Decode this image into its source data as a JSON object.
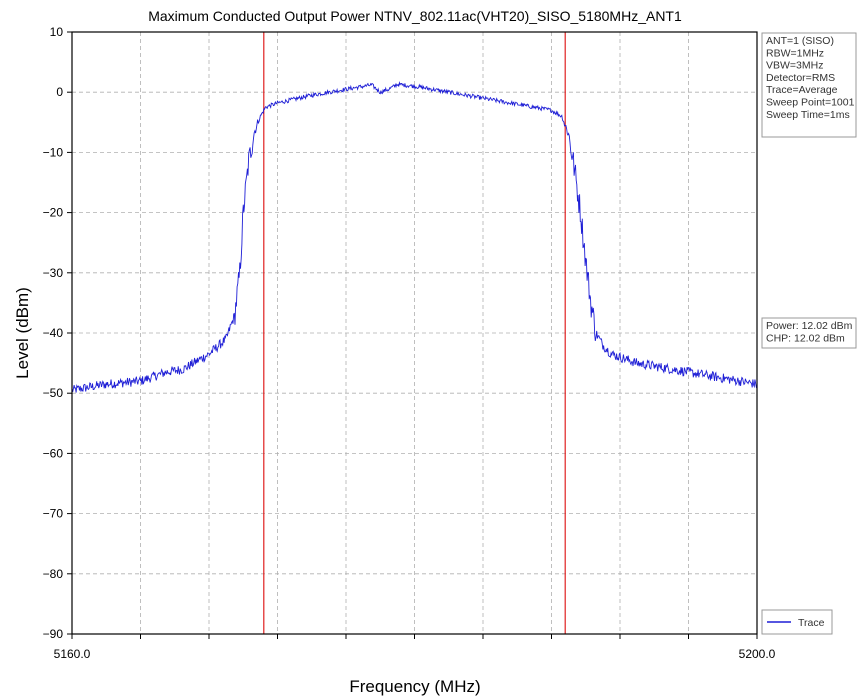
{
  "chart_data": {
    "type": "line",
    "title": "Maximum Conducted Output Power NTNV_802.11ac(VHT20)_SISO_5180MHz_ANT1",
    "xlabel": "Frequency (MHz)",
    "ylabel": "Level (dBm)",
    "xlim": [
      5160.0,
      5200.0
    ],
    "ylim": [
      -90,
      10
    ],
    "x_tick_labels": [
      "5160.0",
      "5200.0"
    ],
    "x_minor_ticks": [
      5164,
      5168,
      5172,
      5176,
      5180,
      5184,
      5188,
      5192,
      5196
    ],
    "y_ticks": [
      10,
      0,
      -10,
      -20,
      -30,
      -40,
      -50,
      -60,
      -70,
      -80,
      -90
    ],
    "y_tick_labels": [
      "10",
      "0",
      "−10",
      "−20",
      "−30",
      "−40",
      "−50",
      "−60",
      "−70",
      "−80",
      "−90"
    ],
    "grid": true,
    "legend": {
      "position": "bottom-right",
      "entries": [
        {
          "label": "Trace",
          "color": "#1f1fd6"
        }
      ]
    },
    "markers": {
      "x": [
        5171.2,
        5188.8
      ],
      "color": "#e02020"
    },
    "series": [
      {
        "name": "Trace",
        "color": "#1f1fd6",
        "x": [
          5160.0,
          5162.0,
          5164.0,
          5165.5,
          5166.5,
          5168.0,
          5169.0,
          5169.5,
          5169.8,
          5170.0,
          5170.3,
          5170.6,
          5171.0,
          5171.3,
          5172.0,
          5174.0,
          5176.0,
          5177.5,
          5178.0,
          5178.5,
          5179.0,
          5180.0,
          5182.0,
          5184.0,
          5186.0,
          5188.0,
          5188.6,
          5189.0,
          5189.3,
          5189.7,
          5190.0,
          5190.3,
          5190.6,
          5191.0,
          5191.5,
          5193.0,
          5195.0,
          5197.0,
          5199.0,
          5200.0
        ],
        "y": [
          -49.5,
          -48.5,
          -48.0,
          -46.5,
          -46.0,
          -43.5,
          -41.0,
          -37.0,
          -30.0,
          -20.0,
          -12.0,
          -7.0,
          -4.0,
          -2.5,
          -1.8,
          -0.5,
          0.5,
          1.2,
          0.0,
          0.5,
          1.3,
          1.0,
          0.0,
          -1.0,
          -2.0,
          -3.0,
          -4.0,
          -7.0,
          -12.0,
          -20.0,
          -28.0,
          -35.0,
          -40.0,
          -42.0,
          -43.5,
          -45.0,
          -46.0,
          -47.0,
          -48.0,
          -48.5
        ]
      }
    ]
  },
  "info_panel": {
    "lines": [
      "ANT=1 (SISO)",
      "RBW=1MHz",
      "VBW=3MHz",
      "Detector=RMS",
      "Trace=Average",
      "Sweep Point=1001",
      "Sweep Time=1ms"
    ]
  },
  "power_panel": {
    "lines": [
      "Power: 12.02 dBm",
      "CHP: 12.02 dBm"
    ]
  }
}
